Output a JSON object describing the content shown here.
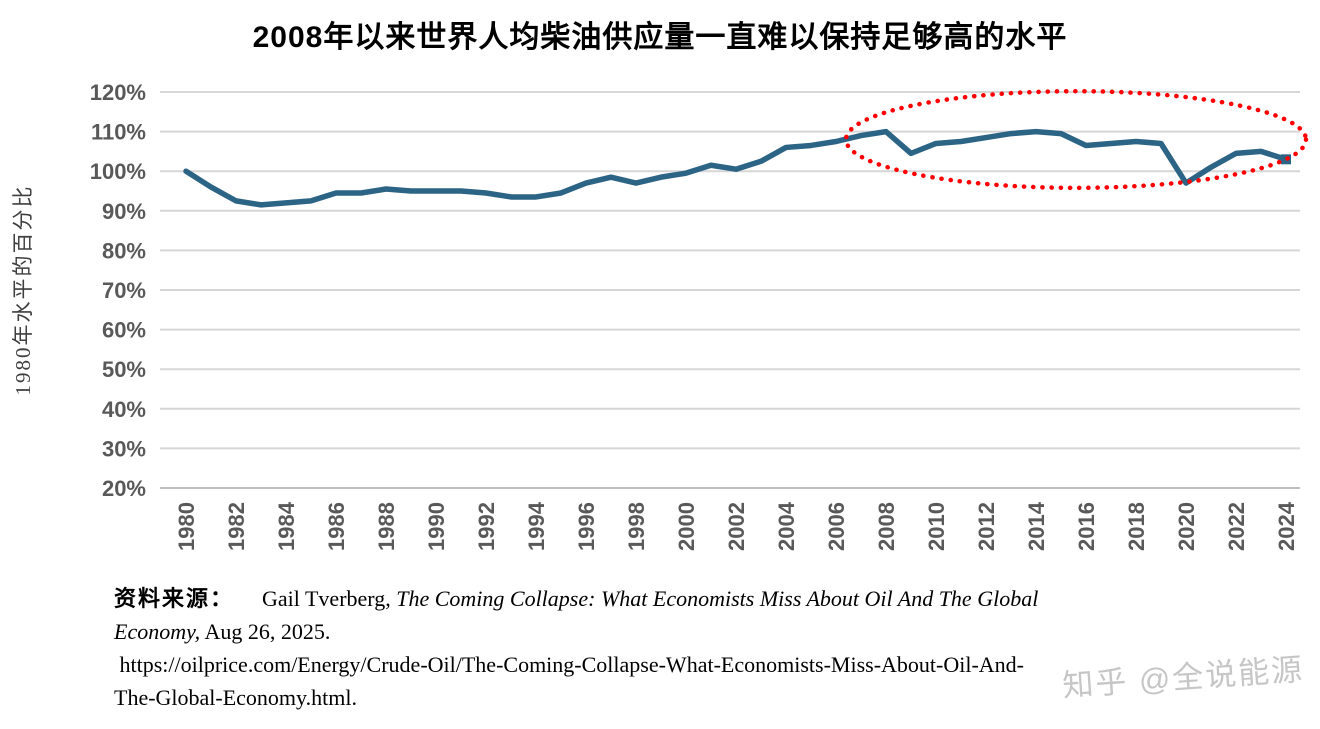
{
  "title": "2008年以来世界人均柴油供应量一直难以保持足够高的水平",
  "chart_data": {
    "type": "line",
    "title": "2008年以来世界人均柴油供应量一直难以保持足够高的水平",
    "xlabel": "",
    "ylabel": "1980年水平的百分比",
    "ylim": [
      20,
      120
    ],
    "ytick_step": 10,
    "ytick_suffix": "%",
    "xtick_step": 2,
    "grid": true,
    "legend": "none",
    "grid_color": "#d6d6d6",
    "axis_color": "#bfbfbf",
    "tick_color": "#595959",
    "line_color": "#2c6485",
    "x": [
      1980,
      1981,
      1982,
      1983,
      1984,
      1985,
      1986,
      1987,
      1988,
      1989,
      1990,
      1991,
      1992,
      1993,
      1994,
      1995,
      1996,
      1997,
      1998,
      1999,
      2000,
      2001,
      2002,
      2003,
      2004,
      2005,
      2006,
      2007,
      2008,
      2009,
      2010,
      2011,
      2012,
      2013,
      2014,
      2015,
      2016,
      2017,
      2018,
      2019,
      2020,
      2021,
      2022,
      2023,
      2024
    ],
    "values": [
      100,
      96,
      92.5,
      91.5,
      92,
      92.5,
      94.5,
      94.5,
      95.5,
      95,
      95,
      95,
      94.5,
      93.5,
      93.5,
      94.5,
      97,
      98.5,
      97,
      98.5,
      99.5,
      101.5,
      100.5,
      102.5,
      106,
      106.5,
      107.5,
      109,
      110,
      104.5,
      107,
      107.5,
      108.5,
      109.5,
      110,
      109.5,
      106.5,
      107,
      107.5,
      107,
      97,
      101,
      104.5,
      105,
      103
    ],
    "annotation": {
      "shape": "ellipse",
      "style": "dotted",
      "color": "#fe0000",
      "center_x_year": 2015.6,
      "center_y_value": 108,
      "radius_x_years": 9.2,
      "radius_y_values": 12.2
    }
  },
  "source": {
    "label": "资料来源：",
    "author": "Gail Tverberg, ",
    "work_title_line1": "The Coming Collapse: What Economists Miss About Oil And The Global",
    "work_title_line2": "Economy,",
    "date": " Aug 26, 2025.",
    "url_line1": " https://oilprice.com/Energy/Crude-Oil/The-Coming-Collapse-What-Economists-Miss-About-Oil-And-",
    "url_line2": "The-Global-Economy.html."
  },
  "watermark": "知乎 @全说能源"
}
